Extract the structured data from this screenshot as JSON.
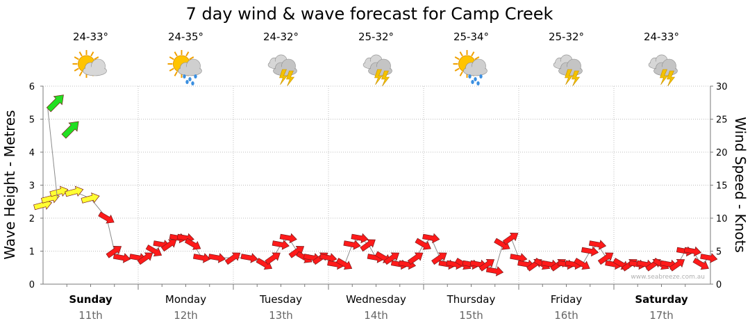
{
  "chart_data": {
    "type": "line",
    "title": "7 day wind & wave forecast for Camp Creek",
    "y_left_label": "Wave Height - Metres",
    "y_right_label": "Wind Speed - Knots",
    "y_left_ticks": [
      "0",
      "1",
      "2",
      "3",
      "4",
      "5",
      "6"
    ],
    "y_right_ticks": [
      "0",
      "5",
      "10",
      "15",
      "20",
      "25",
      "30"
    ],
    "ylim_left": [
      0,
      6
    ],
    "ylim_right": [
      0,
      30
    ],
    "grid": true,
    "watermark": "www.seabreeze.com.au",
    "days": [
      {
        "name": "Sunday",
        "date": "11th",
        "bold": true,
        "temp": "24-33°",
        "icon": "sun-cloud-icon"
      },
      {
        "name": "Monday",
        "date": "12th",
        "bold": false,
        "temp": "24-35°",
        "icon": "sun-rain-icon"
      },
      {
        "name": "Tuesday",
        "date": "13th",
        "bold": false,
        "temp": "24-32°",
        "icon": "storm-icon"
      },
      {
        "name": "Wednesday",
        "date": "14th",
        "bold": false,
        "temp": "25-32°",
        "icon": "storm-icon"
      },
      {
        "name": "Thursday",
        "date": "15th",
        "bold": false,
        "temp": "25-34°",
        "icon": "sun-rain-icon"
      },
      {
        "name": "Friday",
        "date": "16th",
        "bold": false,
        "temp": "25-32°",
        "icon": "storm-icon"
      },
      {
        "name": "Saturday",
        "date": "17th",
        "bold": true,
        "temp": "24-33°",
        "icon": "storm-icon"
      }
    ],
    "series": [
      {
        "name": "wave_height_m",
        "x_days": [
          0.05,
          0.15
        ],
        "values": [
          5.3,
          2.6
        ]
      },
      {
        "name": "wind_knots",
        "x_days": [
          0.0,
          0.08,
          0.17,
          0.33,
          0.5,
          0.67,
          0.75,
          0.83,
          1.0,
          1.08,
          1.17,
          1.25,
          1.33,
          1.42,
          1.5,
          1.58,
          1.67,
          1.83,
          2.0,
          2.17,
          2.33,
          2.42,
          2.5,
          2.58,
          2.67,
          2.75,
          2.83,
          2.92,
          3.0,
          3.08,
          3.17,
          3.25,
          3.33,
          3.42,
          3.5,
          3.58,
          3.67,
          3.75,
          3.83,
          3.92,
          4.0,
          4.08,
          4.17,
          4.25,
          4.33,
          4.42,
          4.5,
          4.58,
          4.67,
          4.75,
          4.83,
          4.92,
          5.0,
          5.08,
          5.17,
          5.25,
          5.33,
          5.42,
          5.5,
          5.58,
          5.67,
          5.75,
          5.83,
          5.92,
          6.0,
          6.08,
          6.17,
          6.25,
          6.33,
          6.42,
          6.5,
          6.58,
          6.67,
          6.75,
          6.83,
          6.92,
          7.0
        ],
        "values": [
          12,
          13,
          14,
          14,
          13,
          10,
          5,
          4,
          4,
          4,
          5,
          6,
          6,
          7,
          7,
          6,
          4,
          4,
          4,
          4,
          3,
          4,
          6,
          7,
          5,
          4,
          4,
          4,
          4,
          3,
          3,
          6,
          7,
          6,
          4,
          4,
          4,
          3,
          3,
          4,
          6,
          7,
          4,
          3,
          3,
          3,
          3,
          3,
          3,
          2,
          6,
          7,
          4,
          3,
          3,
          3,
          3,
          3,
          3,
          3,
          3,
          5,
          6,
          4,
          3,
          3,
          3,
          3,
          3,
          3,
          3,
          3,
          3,
          5,
          5,
          3,
          4
        ]
      }
    ]
  }
}
